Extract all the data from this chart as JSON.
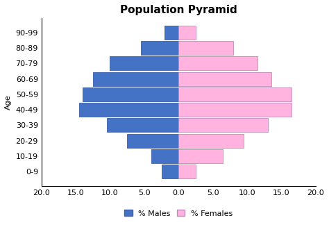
{
  "title": "Population Pyramid",
  "age_groups": [
    "0-9",
    "10-19",
    "20-29",
    "30-39",
    "40-49",
    "50-59",
    "60-69",
    "70-79",
    "80-89",
    "90-99"
  ],
  "males": [
    2.5,
    4.0,
    7.5,
    10.5,
    14.5,
    14.0,
    12.5,
    10.0,
    5.5,
    2.0
  ],
  "females": [
    2.5,
    6.5,
    9.5,
    13.0,
    16.5,
    16.5,
    13.5,
    11.5,
    8.0,
    2.5
  ],
  "male_color": "#4472C4",
  "female_color": "#FFB3DE",
  "male_edge_color": "#3A5FA8",
  "female_edge_color": "#C08ABB",
  "xlim": [
    -20,
    20
  ],
  "xticks": [
    -20.0,
    -15.0,
    -10.0,
    -5.0,
    0.0,
    5.0,
    10.0,
    15.0,
    20.0
  ],
  "xticklabels": [
    "20.0",
    "15.0",
    "10.0",
    "5.0",
    "0.0",
    "5.0",
    "10.0",
    "15.0",
    "20.0"
  ],
  "ylabel": "Age",
  "bar_height": 0.9,
  "background_color": "#FFFFFF",
  "legend_labels": [
    "% Males",
    "% Females"
  ],
  "title_fontsize": 11,
  "axis_fontsize": 8,
  "tick_fontsize": 8
}
